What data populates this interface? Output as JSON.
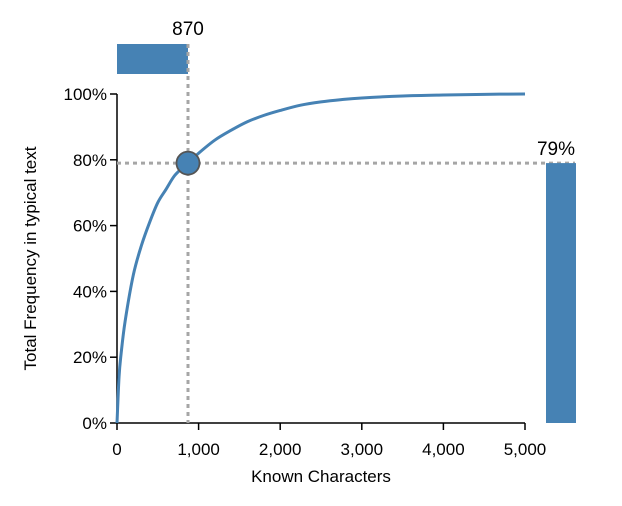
{
  "chart_data": {
    "type": "line",
    "xlabel": "Known Characters",
    "ylabel": "Total Frequency in typical text",
    "xlim": [
      0,
      5000
    ],
    "ylim": [
      0,
      100
    ],
    "x_ticks": [
      0,
      1000,
      2000,
      3000,
      4000,
      5000
    ],
    "x_tick_labels": [
      "0",
      "1,000",
      "2,000",
      "3,000",
      "4,000",
      "5,000"
    ],
    "y_ticks": [
      0,
      20,
      40,
      60,
      80,
      100
    ],
    "y_tick_labels": [
      "0%",
      "20%",
      "40%",
      "60%",
      "80%",
      "100%"
    ],
    "grid": false,
    "series": [
      {
        "color": "#4682b4",
        "x": [
          0,
          25,
          50,
          100,
          200,
          300,
          400,
          500,
          600,
          700,
          800,
          870,
          1000,
          1200,
          1400,
          1600,
          1800,
          2000,
          2250,
          2500,
          2750,
          3000,
          3500,
          4000,
          4500,
          5000
        ],
        "y": [
          0,
          14,
          21,
          31,
          45,
          54,
          61,
          67,
          71,
          75,
          77.5,
          79,
          82,
          86,
          89,
          91.6,
          93.5,
          95,
          96.6,
          97.6,
          98.3,
          98.8,
          99.4,
          99.7,
          99.9,
          100
        ]
      }
    ],
    "selection": {
      "known_characters": 870,
      "coverage_percent": 79,
      "known_characters_label": "870",
      "coverage_label": "79%"
    },
    "x_control_fraction": 0.174
  },
  "colors": {
    "series": "#4682b4",
    "guide": "#a6a6a6",
    "handle_stroke": "#555555"
  }
}
